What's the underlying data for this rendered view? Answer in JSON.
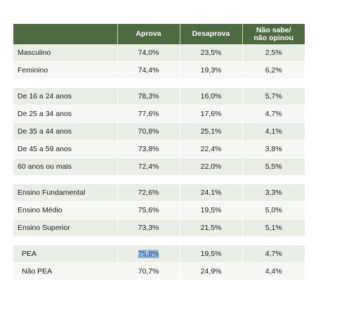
{
  "columns": {
    "aprova": "Aprova",
    "desaprova": "Desaprova",
    "naosabe_line1": "Não sabe/",
    "naosabe_line2": "não opinou"
  },
  "groups": [
    {
      "rows": [
        {
          "label": "Masculino",
          "aprova": "74,0%",
          "desaprova": "23,5%",
          "naosabe": "2,5%"
        },
        {
          "label": "Feminino",
          "aprova": "74,4%",
          "desaprova": "19,3%",
          "naosabe": "6,2%"
        }
      ]
    },
    {
      "rows": [
        {
          "label": "De 16 a 24 anos",
          "aprova": "78,3%",
          "desaprova": "16,0%",
          "naosabe": "5,7%"
        },
        {
          "label": "De 25 a 34 anos",
          "aprova": "77,6%",
          "desaprova": "17,6%",
          "naosabe": "4,7%"
        },
        {
          "label": "De 35 a 44 anos",
          "aprova": "70,8%",
          "desaprova": "25,1%",
          "naosabe": "4,1%"
        },
        {
          "label": "De 45 a 59 anos",
          "aprova": "73,8%",
          "desaprova": "22,4%",
          "naosabe": "3,8%"
        },
        {
          "label": "60 anos ou mais",
          "aprova": "72,4%",
          "desaprova": "22,0%",
          "naosabe": "5,5%"
        }
      ]
    },
    {
      "rows": [
        {
          "label": "Ensino Fundamental",
          "aprova": "72,6%",
          "desaprova": "24,1%",
          "naosabe": "3,3%"
        },
        {
          "label": "Ensino Médio",
          "aprova": "75,6%",
          "desaprova": "19,5%",
          "naosabe": "5,0%"
        },
        {
          "label": "Ensino Superior",
          "aprova": "73,3%",
          "desaprova": "21,5%",
          "naosabe": "5,1%"
        }
      ]
    },
    {
      "rows": [
        {
          "label": "PEA",
          "aprova": "75,8%",
          "desaprova": "19,5%",
          "naosabe": "4,7%"
        },
        {
          "label": "Não PEA",
          "aprova": "70,7%",
          "desaprova": "24,9%",
          "naosabe": "4,4%"
        }
      ]
    }
  ],
  "colors": {
    "header_bg": "#4e6a43",
    "row_bg": "#e9efe5",
    "row_alt_bg": "#f6f8f4",
    "selection_highlight": "#9fc3e9"
  },
  "selection": {
    "text": "75,8%"
  }
}
